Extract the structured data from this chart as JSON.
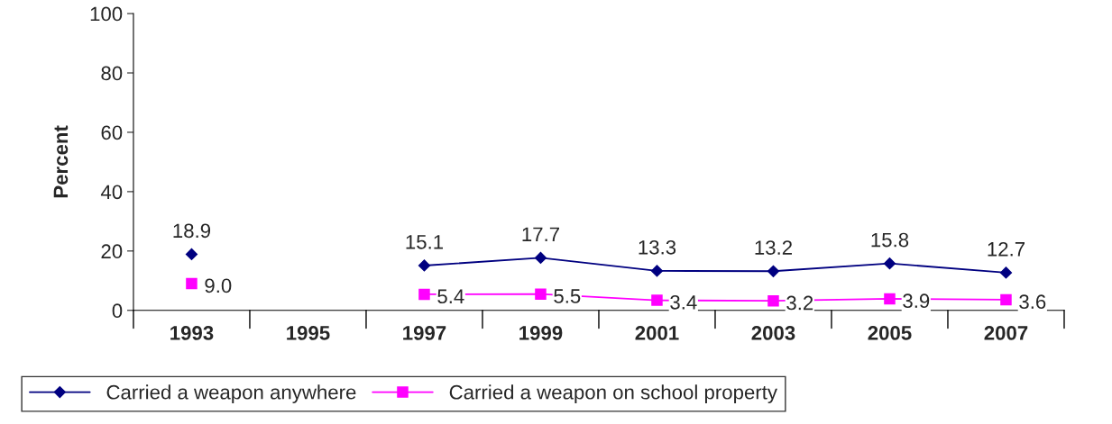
{
  "chart_data": {
    "type": "line",
    "ylabel": "Percent",
    "categories": [
      "1993",
      "1995",
      "1997",
      "1999",
      "2001",
      "2003",
      "2005",
      "2007"
    ],
    "series": [
      {
        "name": "Carried a weapon anywhere",
        "color": "#000080",
        "marker": "diamond",
        "values": [
          18.9,
          null,
          15.1,
          17.7,
          13.3,
          13.2,
          15.8,
          12.7
        ],
        "value_labels": [
          "18.9",
          null,
          "15.1",
          "17.7",
          "13.3",
          "13.2",
          "15.8",
          "12.7"
        ]
      },
      {
        "name": "Carried a weapon on school property",
        "color": "#ff00ff",
        "marker": "square",
        "values": [
          9.0,
          null,
          5.4,
          5.5,
          3.4,
          3.2,
          3.9,
          3.6
        ],
        "value_labels": [
          "9.0",
          null,
          "5.4",
          "5.5",
          "3.4",
          "3.2",
          "3.9",
          "3.6"
        ]
      }
    ],
    "ylim": [
      0,
      100
    ],
    "yticks": [
      0,
      20,
      40,
      60,
      80,
      100
    ],
    "grid": false,
    "legend": "bottom"
  }
}
